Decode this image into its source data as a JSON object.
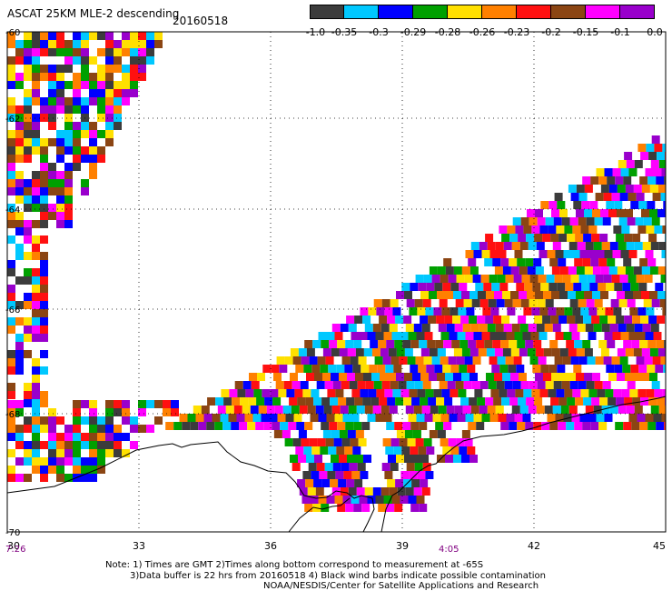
{
  "title": "ASCAT 25KM MLE-2 descending",
  "date": "20160518",
  "colorbar": {
    "colors": [
      "#3c3c3c",
      "#00c8ff",
      "#0000ff",
      "#00a000",
      "#ffe000",
      "#ff8000",
      "#ff1010",
      "#8b4513",
      "#ff00ff",
      "#9900cc"
    ],
    "labels": [
      "-1.0",
      "-0.35",
      "-0.3",
      "-0.29",
      "-0.28",
      "-0.26",
      "-0.23",
      "-0.2",
      "-0.15",
      "-0.1",
      "0.0"
    ]
  },
  "axes": {
    "lat_ticks": [
      "-60",
      "-62",
      "-64",
      "-66",
      "-68",
      "-70"
    ],
    "lon_ticks": [
      "30",
      "33",
      "36",
      "39",
      "42",
      "45"
    ]
  },
  "times": {
    "left": "7:26",
    "middle": "4:05"
  },
  "notes": [
    "Note: 1) Times are GMT 2)Times along bottom correspond to measurement at -65S",
    "3)Data buffer is 22 hrs from 20160518 4) Black wind barbs indicate possible contamination",
    "NOAA/NESDIS/Center for Satellite Applications and Research"
  ]
}
